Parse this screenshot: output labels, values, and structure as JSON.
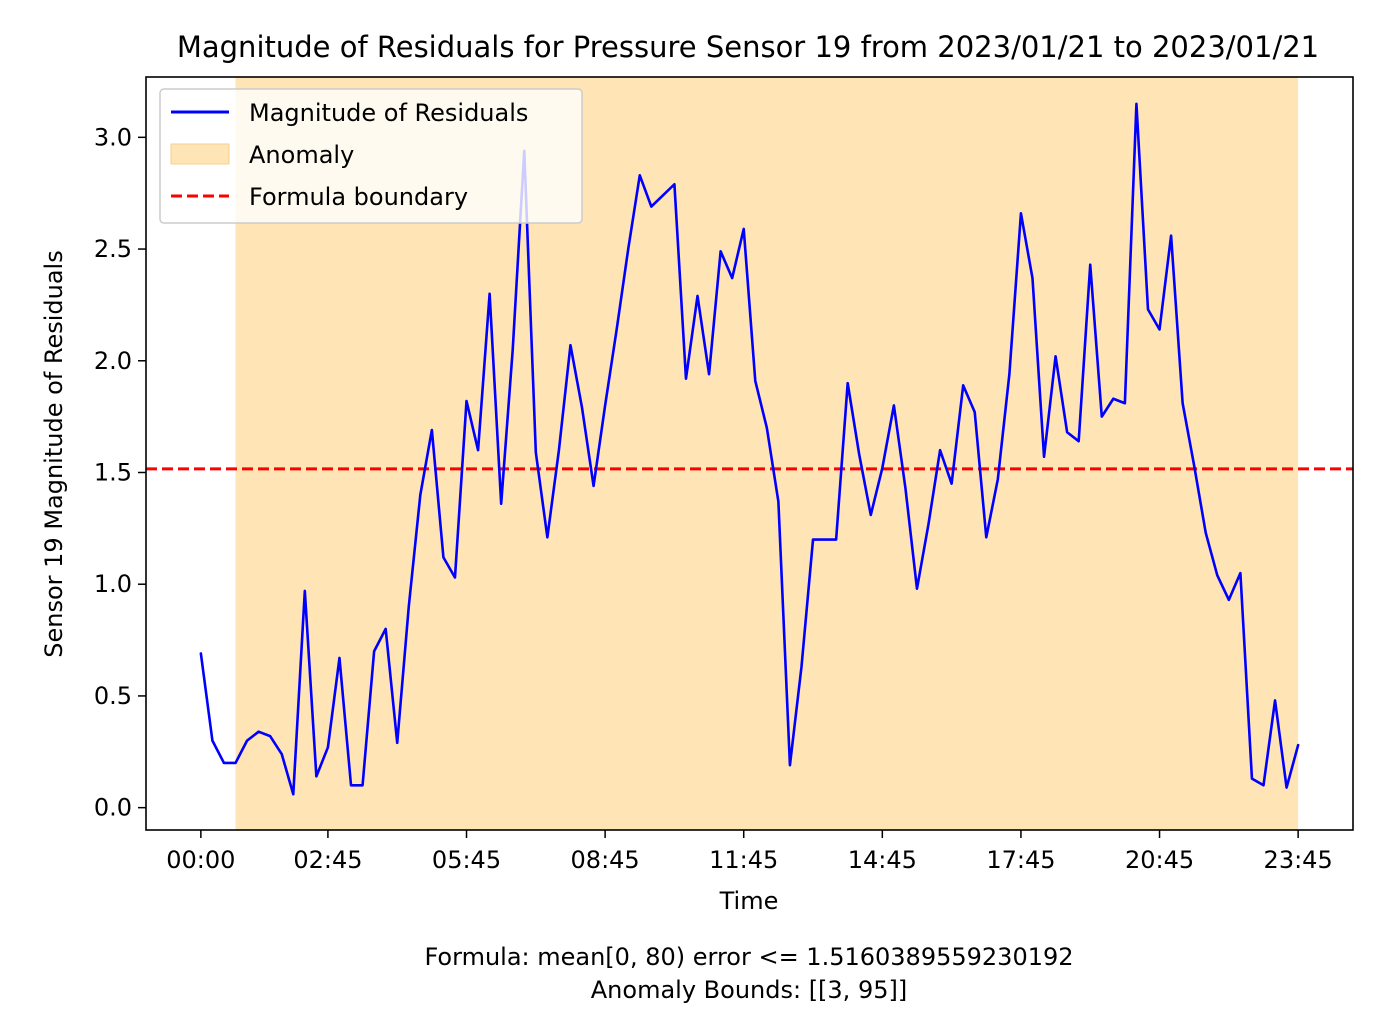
{
  "chart_data": {
    "type": "line",
    "title": "Magnitude of Residuals for Pressure Sensor 19 from 2023/01/21 to 2023/01/21",
    "xlabel": "Time",
    "ylabel": "Sensor 19 Magnitude of Residuals",
    "x_tick_labels": [
      "00:00",
      "02:45",
      "05:45",
      "08:45",
      "11:45",
      "14:45",
      "17:45",
      "20:45",
      "23:45"
    ],
    "x_tick_indices": [
      0,
      11,
      23,
      35,
      47,
      59,
      71,
      83,
      95
    ],
    "y_ticks": [
      0.0,
      0.5,
      1.0,
      1.5,
      2.0,
      2.5,
      3.0
    ],
    "xlim": [
      -4.75,
      99.75
    ],
    "ylim": [
      -0.1,
      3.27
    ],
    "series": [
      {
        "name": "Magnitude of Residuals",
        "color": "#0000ff",
        "values": [
          0.69,
          0.3,
          0.2,
          0.2,
          0.3,
          0.34,
          0.32,
          0.24,
          0.06,
          0.97,
          0.14,
          0.27,
          0.67,
          0.1,
          0.1,
          0.7,
          0.8,
          0.29,
          0.9,
          1.4,
          1.69,
          1.12,
          1.03,
          1.82,
          1.6,
          2.3,
          1.36,
          2.05,
          2.94,
          1.59,
          1.21,
          1.6,
          2.07,
          1.79,
          1.44,
          1.8,
          2.14,
          2.5,
          2.83,
          2.69,
          2.74,
          2.79,
          1.92,
          2.29,
          1.94,
          2.49,
          2.37,
          2.59,
          1.91,
          1.7,
          1.37,
          0.19,
          0.63,
          1.2,
          1.2,
          1.2,
          1.9,
          1.58,
          1.31,
          1.52,
          1.8,
          1.43,
          0.98,
          1.27,
          1.6,
          1.45,
          1.89,
          1.77,
          1.21,
          1.47,
          1.94,
          2.66,
          2.37,
          1.57,
          2.02,
          1.68,
          1.64,
          2.43,
          1.75,
          1.83,
          1.81,
          3.15,
          2.23,
          2.14,
          2.56,
          1.81,
          1.53,
          1.23,
          1.04,
          0.93,
          1.05,
          0.13,
          0.1,
          0.48,
          0.09,
          0.28
        ]
      }
    ],
    "anomaly": {
      "name": "Anomaly",
      "range": [
        3,
        95
      ],
      "color": "#ffe4b5"
    },
    "boundary": {
      "name": "Formula boundary",
      "value": 1.5160389559230192,
      "color": "#ff0000"
    },
    "legend": {
      "placement": "top-left",
      "entries": [
        "Magnitude of Residuals",
        "Anomaly",
        "Formula boundary"
      ]
    },
    "footer": {
      "line1": "Formula: mean[0, 80) error <= 1.5160389559230192",
      "line2": "Anomaly Bounds: [[3, 95]]"
    },
    "grid": false
  }
}
